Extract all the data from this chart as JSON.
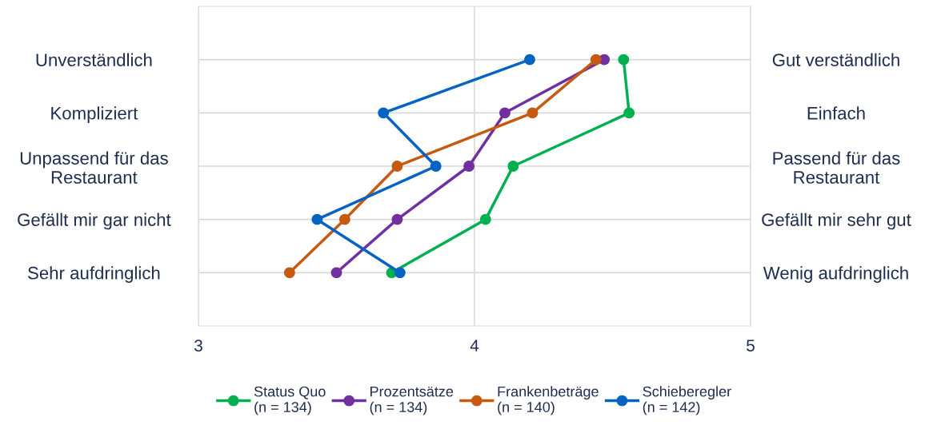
{
  "chart_data": {
    "type": "line",
    "orientation": "horizontal",
    "categories": [
      "Unverständlich",
      "Kompliziert",
      "Unpassend für das\nRestaurant",
      "Gefällt mir gar nicht",
      "Sehr aufdringlich"
    ],
    "y2_categories": [
      "Gut verständlich",
      "Einfach",
      "Passend für das\nRestaurant",
      "Gefällt mir sehr gut",
      "Wenig aufdringlich"
    ],
    "series": [
      {
        "name": "Status Quo\n(n = 134)",
        "color": "#00b050",
        "values": [
          4.54,
          4.56,
          4.14,
          4.04,
          3.7
        ]
      },
      {
        "name": "Prozentsätze\n(n = 134)",
        "color": "#7030a0",
        "values": [
          4.47,
          4.11,
          3.98,
          3.72,
          3.5
        ]
      },
      {
        "name": "Frankenbeträge\n(n = 140)",
        "color": "#c55a11",
        "values": [
          4.44,
          4.21,
          3.72,
          3.53,
          3.33
        ]
      },
      {
        "name": "Schieberegler\n(n = 142)",
        "color": "#0563c1",
        "values": [
          4.2,
          3.67,
          3.86,
          3.43,
          3.73
        ]
      }
    ],
    "xlim": [
      3,
      5
    ],
    "xticks": [
      3,
      4,
      5
    ],
    "grid": true,
    "legend": "bottom",
    "marker": "circle",
    "line_style": "solid"
  }
}
